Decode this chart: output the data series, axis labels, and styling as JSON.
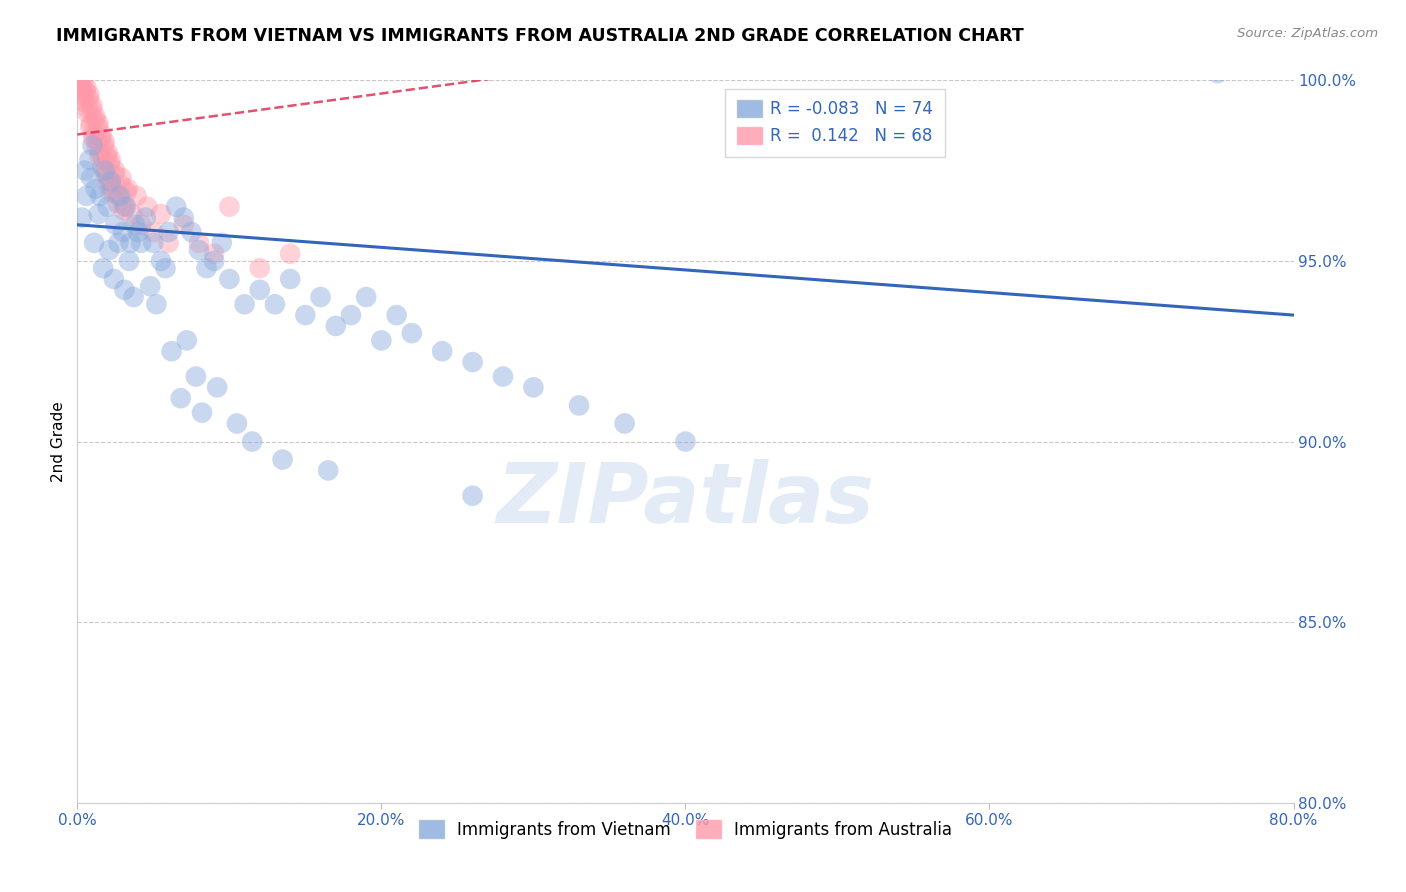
{
  "title": "IMMIGRANTS FROM VIETNAM VS IMMIGRANTS FROM AUSTRALIA 2ND GRADE CORRELATION CHART",
  "source": "Source: ZipAtlas.com",
  "ylabel": "2nd Grade",
  "xlim": [
    0.0,
    80.0
  ],
  "ylim": [
    80.0,
    100.0
  ],
  "xticks": [
    0.0,
    20.0,
    40.0,
    60.0,
    80.0
  ],
  "yticks": [
    80.0,
    85.0,
    90.0,
    95.0,
    100.0
  ],
  "blue_R": -0.083,
  "blue_N": 74,
  "pink_R": 0.142,
  "pink_N": 68,
  "blue_color": "#88AADD",
  "pink_color": "#FF99AA",
  "blue_line_color": "#3366BB",
  "pink_line_color": "#DD3355",
  "legend_label_blue": "Immigrants from Vietnam",
  "legend_label_pink": "Immigrants from Australia",
  "blue_line_x0": 0.0,
  "blue_line_y0": 96.0,
  "blue_line_x1": 80.0,
  "blue_line_y1": 93.5,
  "pink_line_x0": 0.0,
  "pink_line_y0": 98.5,
  "pink_line_x1": 30.0,
  "pink_line_y1": 100.2,
  "blue_scatter_x": [
    0.5,
    0.8,
    1.0,
    1.2,
    1.5,
    1.8,
    2.0,
    2.2,
    2.5,
    2.8,
    3.0,
    3.2,
    3.5,
    3.8,
    4.0,
    4.5,
    5.0,
    5.5,
    6.0,
    6.5,
    7.0,
    7.5,
    8.0,
    8.5,
    9.0,
    9.5,
    10.0,
    11.0,
    12.0,
    13.0,
    14.0,
    15.0,
    16.0,
    17.0,
    18.0,
    19.0,
    20.0,
    21.0,
    22.0,
    24.0,
    26.0,
    28.0,
    30.0,
    33.0,
    36.0,
    40.0,
    75.0,
    0.3,
    0.6,
    0.9,
    1.1,
    1.4,
    1.7,
    2.1,
    2.4,
    2.7,
    3.1,
    3.4,
    3.7,
    4.2,
    4.8,
    5.2,
    5.8,
    6.2,
    6.8,
    7.2,
    7.8,
    8.2,
    9.2,
    10.5,
    11.5,
    13.5,
    16.5,
    26.0
  ],
  "blue_scatter_y": [
    97.5,
    97.8,
    98.2,
    97.0,
    96.8,
    97.5,
    96.5,
    97.2,
    96.0,
    96.8,
    95.8,
    96.5,
    95.5,
    96.0,
    95.8,
    96.2,
    95.5,
    95.0,
    95.8,
    96.5,
    96.2,
    95.8,
    95.3,
    94.8,
    95.0,
    95.5,
    94.5,
    93.8,
    94.2,
    93.8,
    94.5,
    93.5,
    94.0,
    93.2,
    93.5,
    94.0,
    92.8,
    93.5,
    93.0,
    92.5,
    92.2,
    91.8,
    91.5,
    91.0,
    90.5,
    90.0,
    100.2,
    96.2,
    96.8,
    97.3,
    95.5,
    96.3,
    94.8,
    95.3,
    94.5,
    95.5,
    94.2,
    95.0,
    94.0,
    95.5,
    94.3,
    93.8,
    94.8,
    92.5,
    91.2,
    92.8,
    91.8,
    90.8,
    91.5,
    90.5,
    90.0,
    89.5,
    89.2,
    88.5
  ],
  "pink_scatter_x": [
    0.1,
    0.2,
    0.3,
    0.4,
    0.5,
    0.6,
    0.7,
    0.8,
    0.9,
    1.0,
    1.1,
    1.2,
    1.3,
    1.4,
    1.5,
    1.6,
    1.7,
    1.8,
    1.9,
    2.0,
    2.1,
    2.2,
    2.3,
    2.5,
    2.7,
    2.9,
    3.1,
    3.3,
    3.6,
    3.9,
    4.2,
    4.6,
    5.0,
    5.5,
    6.0,
    7.0,
    8.0,
    9.0,
    10.0,
    12.0,
    14.0,
    0.15,
    0.25,
    0.35,
    0.45,
    0.55,
    0.65,
    0.75,
    0.85,
    0.95,
    1.05,
    1.15,
    1.25,
    1.35,
    1.45,
    1.55,
    1.65,
    1.75,
    1.85,
    1.95,
    2.05,
    2.15,
    2.25,
    2.45,
    2.65,
    2.85,
    3.05,
    3.25
  ],
  "pink_scatter_y": [
    100.2,
    100.1,
    99.8,
    100.0,
    99.5,
    99.8,
    99.2,
    99.6,
    98.8,
    99.3,
    98.5,
    99.0,
    98.3,
    98.8,
    98.0,
    98.5,
    97.8,
    98.3,
    97.5,
    98.0,
    97.2,
    97.8,
    97.0,
    97.5,
    96.8,
    97.3,
    96.5,
    97.0,
    96.3,
    96.8,
    96.0,
    96.5,
    95.8,
    96.3,
    95.5,
    96.0,
    95.5,
    95.2,
    96.5,
    94.8,
    95.2,
    99.9,
    100.0,
    99.6,
    99.4,
    99.7,
    99.1,
    99.5,
    98.7,
    99.2,
    98.4,
    98.9,
    98.2,
    98.7,
    97.9,
    98.4,
    97.6,
    98.2,
    97.4,
    97.9,
    97.1,
    97.7,
    96.9,
    97.4,
    96.6,
    97.1,
    96.4,
    96.9
  ]
}
